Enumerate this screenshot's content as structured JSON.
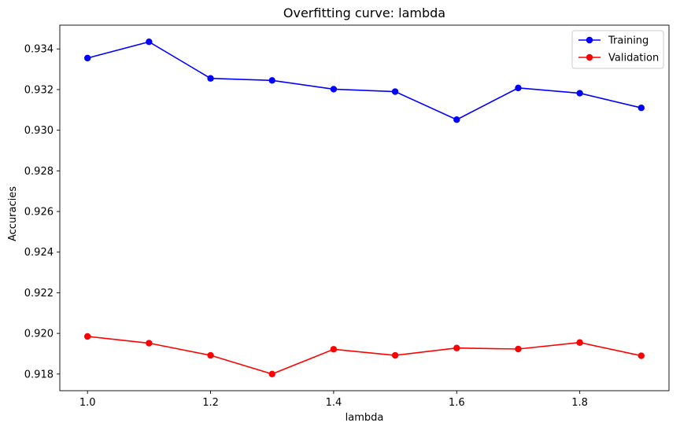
{
  "chart_data": {
    "type": "line",
    "title": "Overfitting curve: lambda",
    "xlabel": "lambda",
    "ylabel": "Accuracies",
    "x": [
      1.0,
      1.1,
      1.2,
      1.3,
      1.4,
      1.5,
      1.6,
      1.7,
      1.8,
      1.9
    ],
    "series": [
      {
        "name": "Training",
        "color": "#0000ff",
        "values": [
          0.93355,
          0.93435,
          0.93255,
          0.93245,
          0.93202,
          0.9319,
          0.93052,
          0.93208,
          0.93182,
          0.9311
        ]
      },
      {
        "name": "Validation",
        "color": "#ff0000",
        "values": [
          0.91985,
          0.91952,
          0.91892,
          0.918,
          0.91922,
          0.91892,
          0.91928,
          0.91923,
          0.91955,
          0.9189
        ]
      }
    ],
    "xlim": [
      0.955,
      1.945
    ],
    "ylim": [
      0.91718,
      0.93517
    ],
    "xticks": [
      "1.0",
      "1.2",
      "1.4",
      "1.6",
      "1.8"
    ],
    "xtick_values": [
      1.0,
      1.2,
      1.4,
      1.6,
      1.8
    ],
    "yticks": [
      "0.918",
      "0.920",
      "0.922",
      "0.924",
      "0.926",
      "0.928",
      "0.930",
      "0.932",
      "0.934"
    ],
    "ytick_values": [
      0.918,
      0.92,
      0.922,
      0.924,
      0.926,
      0.928,
      0.93,
      0.932,
      0.934
    ],
    "grid": false,
    "legend_position": "top-right"
  }
}
